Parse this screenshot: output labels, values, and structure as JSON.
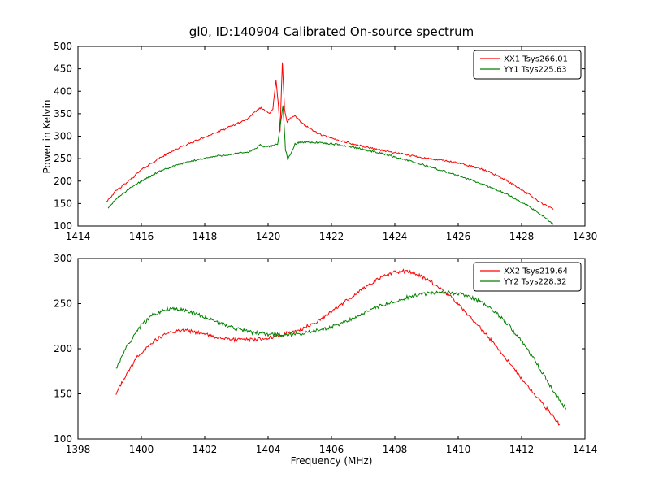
{
  "figure": {
    "title": "gl0, ID:140904 Calibrated On-source spectrum",
    "xlabel": "Frequency (MHz)",
    "ylabel": "Power in Kelvin",
    "background": "#ffffff",
    "axis_color": "#000000"
  },
  "chart_data": [
    {
      "type": "line",
      "title": "gl0, ID:140904 Calibrated On-source spectrum",
      "xlabel": "",
      "ylabel": "Power in Kelvin",
      "xlim": [
        1414,
        1430
      ],
      "ylim": [
        100,
        500
      ],
      "xticks": [
        1414,
        1416,
        1418,
        1420,
        1422,
        1424,
        1426,
        1428,
        1430
      ],
      "yticks": [
        100,
        150,
        200,
        250,
        300,
        350,
        400,
        450,
        500
      ],
      "grid": false,
      "legend_position": "upper right",
      "noise": 4,
      "series": [
        {
          "name": "XX1 Tsys266.01",
          "color": "#ff0000",
          "x": [
            1414.9,
            1415.2,
            1415.6,
            1416.0,
            1416.5,
            1417.0,
            1417.5,
            1418.0,
            1418.5,
            1419.0,
            1419.4,
            1419.6,
            1419.75,
            1419.9,
            1420.05,
            1420.15,
            1420.25,
            1420.32,
            1420.38,
            1420.45,
            1420.52,
            1420.6,
            1420.7,
            1420.85,
            1421.0,
            1421.3,
            1421.6,
            1422.0,
            1422.5,
            1423.0,
            1423.5,
            1424.0,
            1424.5,
            1425.0,
            1425.5,
            1426.0,
            1426.5,
            1427.0,
            1427.4,
            1427.8,
            1428.2,
            1428.6,
            1429.0
          ],
          "y": [
            155,
            178,
            200,
            225,
            248,
            268,
            283,
            298,
            312,
            327,
            340,
            355,
            363,
            358,
            352,
            360,
            425,
            372,
            310,
            465,
            360,
            330,
            340,
            345,
            333,
            318,
            305,
            295,
            286,
            277,
            270,
            263,
            257,
            251,
            246,
            240,
            232,
            220,
            206,
            190,
            172,
            152,
            137
          ]
        },
        {
          "name": "YY1 Tsys225.63",
          "color": "#008000",
          "x": [
            1414.95,
            1415.2,
            1415.6,
            1416.0,
            1416.5,
            1417.0,
            1417.5,
            1418.0,
            1418.5,
            1419.0,
            1419.4,
            1419.6,
            1419.75,
            1419.9,
            1420.1,
            1420.3,
            1420.4,
            1420.47,
            1420.55,
            1420.62,
            1420.7,
            1420.85,
            1421.0,
            1421.5,
            1422.0,
            1422.5,
            1423.0,
            1423.5,
            1424.0,
            1424.5,
            1425.0,
            1425.5,
            1426.0,
            1426.5,
            1427.0,
            1427.4,
            1427.8,
            1428.2,
            1428.6,
            1429.0
          ],
          "y": [
            140,
            160,
            182,
            200,
            219,
            233,
            243,
            251,
            257,
            261,
            265,
            272,
            280,
            276,
            278,
            283,
            330,
            368,
            270,
            248,
            258,
            282,
            287,
            286,
            283,
            278,
            271,
            263,
            254,
            244,
            234,
            223,
            212,
            200,
            187,
            175,
            161,
            145,
            126,
            103
          ]
        }
      ]
    },
    {
      "type": "line",
      "title": "",
      "xlabel": "Frequency (MHz)",
      "ylabel": "",
      "xlim": [
        1398,
        1414
      ],
      "ylim": [
        100,
        300
      ],
      "xticks": [
        1398,
        1400,
        1402,
        1404,
        1406,
        1408,
        1410,
        1412,
        1414
      ],
      "yticks": [
        100,
        150,
        200,
        250,
        300
      ],
      "grid": false,
      "legend_position": "upper right",
      "noise": 4,
      "series": [
        {
          "name": "XX2 Tsys219.64",
          "color": "#ff0000",
          "x": [
            1399.2,
            1399.5,
            1399.9,
            1400.3,
            1400.7,
            1401.0,
            1401.4,
            1401.8,
            1402.2,
            1402.6,
            1403.0,
            1403.5,
            1404.0,
            1404.5,
            1405.0,
            1405.5,
            1406.0,
            1406.5,
            1407.0,
            1407.5,
            1408.0,
            1408.3,
            1408.6,
            1409.0,
            1409.4,
            1409.8,
            1410.2,
            1410.6,
            1411.0,
            1411.4,
            1411.8,
            1412.2,
            1412.6,
            1413.0,
            1413.2
          ],
          "y": [
            150,
            170,
            192,
            206,
            215,
            219,
            220,
            218,
            214,
            211,
            210,
            210,
            212,
            216,
            221,
            229,
            241,
            254,
            267,
            278,
            285,
            286,
            284,
            277,
            268,
            256,
            242,
            227,
            211,
            194,
            176,
            158,
            141,
            125,
            116
          ]
        },
        {
          "name": "YY2 Tsys228.32",
          "color": "#008000",
          "x": [
            1399.2,
            1399.5,
            1399.9,
            1400.3,
            1400.7,
            1401.0,
            1401.4,
            1401.8,
            1402.2,
            1402.6,
            1403.0,
            1403.5,
            1404.0,
            1404.5,
            1405.0,
            1405.5,
            1406.0,
            1406.5,
            1407.0,
            1407.5,
            1408.0,
            1408.5,
            1409.0,
            1409.5,
            1410.0,
            1410.4,
            1410.8,
            1411.2,
            1411.6,
            1412.0,
            1412.4,
            1412.8,
            1413.1,
            1413.4
          ],
          "y": [
            177,
            200,
            222,
            236,
            243,
            245,
            243,
            238,
            232,
            227,
            222,
            218,
            216,
            215,
            216,
            220,
            224,
            231,
            239,
            247,
            253,
            258,
            261,
            263,
            261,
            257,
            250,
            240,
            226,
            208,
            188,
            165,
            148,
            133
          ]
        }
      ]
    }
  ]
}
